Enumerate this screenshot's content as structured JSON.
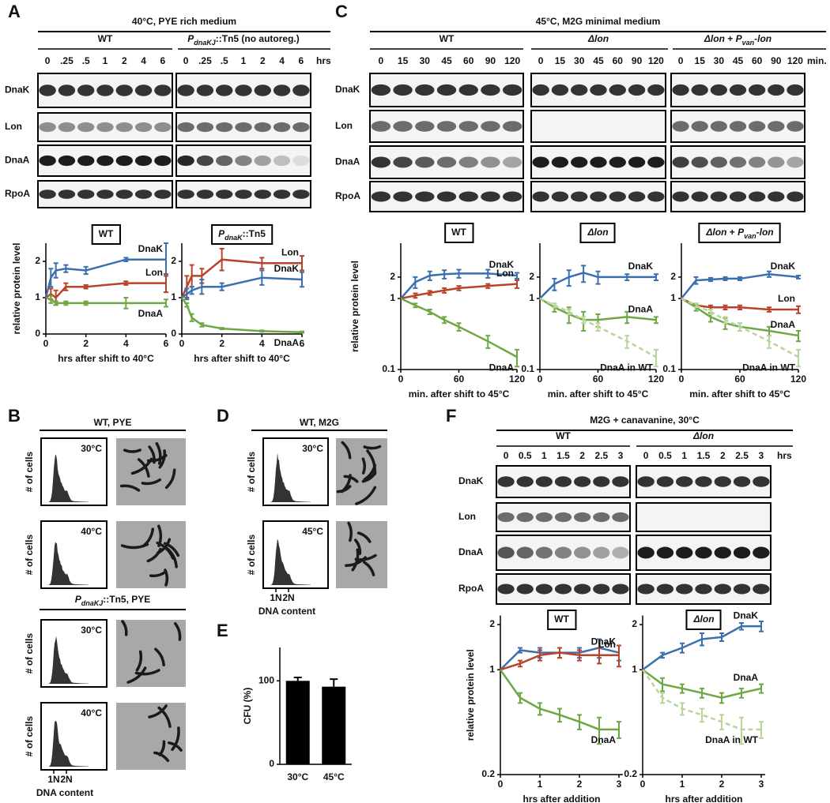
{
  "panel_labels": [
    "A",
    "B",
    "C",
    "D",
    "E",
    "F"
  ],
  "blots": [
    {
      "header": "40°C, PYE rich medium",
      "unit": "hrs",
      "rows": [
        "DnaK",
        "Lon",
        "DnaA",
        "RpoA"
      ],
      "groups": [
        {
          "name": "WT",
          "times": [
            "0",
            ".25",
            ".5",
            "1",
            "2",
            "4",
            "6"
          ]
        },
        {
          "name": [
            {
              "text": "P",
              "italic": true
            },
            {
              "text": "dnaKJ",
              "italic": true,
              "sub": true
            },
            {
              "text": "::Tn5 (no autoreg.)"
            }
          ],
          "times": [
            "0",
            ".25",
            ".5",
            "1",
            "2",
            "4",
            "6"
          ]
        }
      ]
    },
    {
      "header": "45°C, M2G minimal medium",
      "unit": "min.",
      "rows": [
        "DnaK",
        "Lon",
        "DnaA",
        "RpoA"
      ],
      "groups": [
        {
          "name": "WT",
          "times": [
            "0",
            "15",
            "30",
            "45",
            "60",
            "90",
            "120"
          ]
        },
        {
          "name": [
            {
              "text": "Δlon",
              "italic": true
            }
          ],
          "times": [
            "0",
            "15",
            "30",
            "45",
            "60",
            "90",
            "120"
          ]
        },
        {
          "name": [
            {
              "text": "Δlon",
              "italic": true
            },
            {
              "text": " + "
            },
            {
              "text": "P",
              "italic": true
            },
            {
              "text": "van",
              "italic": true,
              "sub": true
            },
            {
              "text": "-lon",
              "italic": true
            }
          ],
          "times": [
            "0",
            "15",
            "30",
            "45",
            "60",
            "90",
            "120"
          ]
        }
      ]
    },
    {
      "header": "M2G + canavanine, 30°C",
      "unit": "hrs",
      "rows": [
        "DnaK",
        "Lon",
        "DnaA",
        "RpoA"
      ],
      "groups": [
        {
          "name": "WT",
          "times": [
            "0",
            "0.5",
            "1",
            "1.5",
            "2",
            "2.5",
            "3"
          ]
        },
        {
          "name": [
            {
              "text": "Δlon",
              "italic": true
            }
          ],
          "times": [
            "0",
            "0.5",
            "1",
            "1.5",
            "2",
            "2.5",
            "3"
          ]
        }
      ]
    }
  ],
  "flow": [
    {
      "title": "WT, PYE",
      "conditions": [
        "30°C",
        "40°C"
      ]
    },
    {
      "title": [
        {
          "text": "P",
          "italic": true
        },
        {
          "text": "dnaKJ",
          "italic": true,
          "sub": true
        },
        {
          "text": "::Tn5, PYE"
        }
      ],
      "conditions": [
        "30°C",
        "40°C"
      ]
    },
    {
      "title": "WT, M2G",
      "conditions": [
        "30°C",
        "45°C"
      ]
    }
  ],
  "flow_ylabel": "# of cells",
  "flow_xticks": [
    "1N",
    "2N"
  ],
  "flow_xlabel": "DNA content",
  "chart_data": [
    {
      "type": "line",
      "title": "WT",
      "ylabel": "relative protein level",
      "xlabel": "hrs after shift to 40°C",
      "x": [
        0,
        0.25,
        0.5,
        1,
        2,
        4,
        6
      ],
      "xlim": [
        0,
        6
      ],
      "xticks": [
        0,
        2,
        4,
        6
      ],
      "ylim": [
        0,
        2.5
      ],
      "yticks": [
        0,
        1,
        2
      ],
      "log_y": false,
      "series": [
        {
          "name": "DnaK",
          "color": "#3b6fae",
          "values": [
            1,
            1.55,
            1.75,
            1.8,
            1.75,
            2.05,
            2.05
          ],
          "errors": [
            0,
            0.25,
            0.2,
            0.1,
            0.1,
            0.05,
            0.45
          ]
        },
        {
          "name": "Lon",
          "color": "#b8422a",
          "values": [
            1,
            1.1,
            1.0,
            1.3,
            1.3,
            1.4,
            1.4
          ],
          "errors": [
            0,
            0.15,
            0.2,
            0.1,
            0.05,
            0.05,
            0.25
          ]
        },
        {
          "name": "DnaA",
          "color": "#6ea844",
          "values": [
            1,
            0.95,
            0.85,
            0.85,
            0.85,
            0.85,
            0.85
          ],
          "errors": [
            0,
            0.1,
            0.05,
            0.05,
            0.05,
            0.15,
            0.1
          ]
        }
      ]
    },
    {
      "type": "line",
      "title": [
        {
          "text": "P",
          "italic": true
        },
        {
          "text": "dnaK",
          "italic": true,
          "sub": true
        },
        {
          "text": "::Tn5"
        }
      ],
      "xlabel": "hrs after shift to 40°C",
      "x": [
        0,
        0.25,
        0.5,
        1,
        2,
        4,
        6
      ],
      "xlim": [
        0,
        6
      ],
      "xticks": [
        0,
        2,
        4,
        6
      ],
      "ylim": [
        0,
        2.5
      ],
      "yticks": [
        0,
        1,
        2
      ],
      "log_y": false,
      "series": [
        {
          "name": "Lon",
          "color": "#b8422a",
          "values": [
            1,
            1.3,
            1.6,
            1.6,
            2.05,
            1.95,
            1.95
          ],
          "errors": [
            0,
            0.3,
            0.3,
            0.2,
            0.3,
            0.15,
            0.2
          ]
        },
        {
          "name": "DnaK",
          "color": "#3b6fae",
          "values": [
            1,
            1.1,
            1.2,
            1.3,
            1.3,
            1.55,
            1.5
          ],
          "errors": [
            0,
            0.15,
            0.1,
            0.2,
            0.1,
            0.2,
            0.2
          ]
        },
        {
          "name": "DnaA",
          "color": "#6ea844",
          "values": [
            1,
            0.8,
            0.45,
            0.25,
            0.15,
            0.08,
            0.05
          ],
          "errors": [
            0,
            0.05,
            0.1,
            0.05,
            0.02,
            0.02,
            0.02
          ]
        }
      ]
    },
    {
      "type": "line",
      "title": "WT",
      "ylabel": "relative protein level",
      "xlabel": "min. after shift to 45°C",
      "x": [
        0,
        15,
        30,
        45,
        60,
        90,
        120
      ],
      "xlim": [
        0,
        120
      ],
      "xticks": [
        0,
        60,
        120
      ],
      "ylim": [
        0.1,
        6
      ],
      "yticks": [
        0.1,
        1,
        2
      ],
      "log_y": true,
      "series": [
        {
          "name": "DnaK",
          "color": "#3b6fae",
          "values": [
            1,
            1.7,
            2.1,
            2.2,
            2.25,
            2.25,
            2.1
          ],
          "errors": [
            0,
            0.3,
            0.3,
            0.3,
            0.3,
            0.3,
            0.2
          ]
        },
        {
          "name": "Lon",
          "color": "#b8422a",
          "values": [
            1,
            1.1,
            1.2,
            1.3,
            1.4,
            1.5,
            1.6
          ],
          "errors": [
            0,
            0.08,
            0.08,
            0.1,
            0.1,
            0.1,
            0.2
          ]
        },
        {
          "name": "DnaA",
          "color": "#6ea844",
          "values": [
            1,
            0.8,
            0.65,
            0.5,
            0.4,
            0.25,
            0.15
          ],
          "errors": [
            0,
            0.05,
            0.05,
            0.05,
            0.05,
            0.05,
            0.04
          ]
        }
      ]
    },
    {
      "type": "line",
      "title": [
        {
          "text": "Δlon",
          "italic": true
        }
      ],
      "xlabel": "min. after shift to 45°C",
      "x": [
        0,
        15,
        30,
        45,
        60,
        90,
        120
      ],
      "xlim": [
        0,
        120
      ],
      "xticks": [
        0,
        60,
        120
      ],
      "ylim": [
        0.1,
        6
      ],
      "yticks": [
        0.1,
        1,
        2
      ],
      "log_y": true,
      "series": [
        {
          "name": "DnaK",
          "color": "#3b6fae",
          "values": [
            1,
            1.6,
            2.0,
            2.3,
            2.0,
            2.0,
            2.0
          ],
          "errors": [
            0,
            0.3,
            0.5,
            0.6,
            0.4,
            0.2,
            0.2
          ]
        },
        {
          "name": "DnaA",
          "color": "#6ea844",
          "values": [
            1,
            0.75,
            0.6,
            0.5,
            0.5,
            0.55,
            0.5
          ],
          "errors": [
            0,
            0.1,
            0.15,
            0.15,
            0.1,
            0.1,
            0.05
          ]
        },
        {
          "name": "DnaA in WT",
          "color": "#b9d59c",
          "dashed": true,
          "values": [
            1,
            0.8,
            0.65,
            0.5,
            0.4,
            0.25,
            0.15
          ],
          "errors": [
            0,
            0.05,
            0.05,
            0.05,
            0.05,
            0.05,
            0.04
          ]
        }
      ]
    },
    {
      "type": "line",
      "title": [
        {
          "text": "Δlon",
          "italic": true
        },
        {
          "text": " + "
        },
        {
          "text": "P",
          "italic": true
        },
        {
          "text": "van",
          "italic": true,
          "sub": true
        },
        {
          "text": "-lon",
          "italic": true
        }
      ],
      "xlabel": "min. after shift to 45°C",
      "x": [
        0,
        15,
        30,
        45,
        60,
        90,
        120
      ],
      "xlim": [
        0,
        120
      ],
      "xticks": [
        0,
        60,
        120
      ],
      "ylim": [
        0.1,
        6
      ],
      "yticks": [
        0.1,
        1,
        2
      ],
      "log_y": true,
      "series": [
        {
          "name": "DnaK",
          "color": "#3b6fae",
          "values": [
            1,
            1.8,
            1.85,
            1.9,
            1.9,
            2.2,
            2.0
          ],
          "errors": [
            0,
            0.2,
            0.1,
            0.1,
            0.1,
            0.2,
            0.1
          ]
        },
        {
          "name": "Lon",
          "color": "#b8422a",
          "values": [
            1,
            0.8,
            0.75,
            0.75,
            0.75,
            0.7,
            0.7
          ],
          "errors": [
            0,
            0.05,
            0.05,
            0.05,
            0.05,
            0.05,
            0.08
          ]
        },
        {
          "name": "DnaA",
          "color": "#6ea844",
          "values": [
            1,
            0.75,
            0.55,
            0.45,
            0.4,
            0.35,
            0.3
          ],
          "errors": [
            0,
            0.08,
            0.08,
            0.08,
            0.05,
            0.05,
            0.05
          ]
        },
        {
          "name": "DnaA in WT",
          "color": "#b9d59c",
          "dashed": true,
          "values": [
            1,
            0.8,
            0.65,
            0.5,
            0.4,
            0.25,
            0.15
          ],
          "errors": [
            0,
            0.05,
            0.05,
            0.05,
            0.05,
            0.05,
            0.04
          ]
        }
      ]
    },
    {
      "type": "line",
      "title": "WT",
      "ylabel": "relative protein level",
      "xlabel": "hrs after addition",
      "x": [
        0,
        0.5,
        1,
        1.5,
        2,
        2.5,
        3
      ],
      "xlim": [
        0,
        3.1
      ],
      "xticks": [
        0,
        1,
        2,
        3
      ],
      "ylim": [
        0.2,
        2.3
      ],
      "yticks": [
        0.2,
        1,
        2
      ],
      "log_y": true,
      "series": [
        {
          "name": "DnaK",
          "color": "#3b6fae",
          "values": [
            1,
            1.35,
            1.3,
            1.3,
            1.3,
            1.4,
            1.3
          ],
          "errors": [
            0,
            0.05,
            0.1,
            0.1,
            0.1,
            0.2,
            0.15
          ]
        },
        {
          "name": "Lon",
          "color": "#b8422a",
          "values": [
            1,
            1.1,
            1.25,
            1.3,
            1.25,
            1.25,
            1.25
          ],
          "errors": [
            0,
            0.05,
            0.1,
            0.1,
            0.1,
            0.15,
            0.2
          ]
        },
        {
          "name": "DnaA",
          "color": "#6ea844",
          "values": [
            1,
            0.65,
            0.55,
            0.5,
            0.45,
            0.4,
            0.4
          ],
          "errors": [
            0,
            0.05,
            0.05,
            0.05,
            0.05,
            0.08,
            0.05
          ]
        }
      ]
    },
    {
      "type": "line",
      "title": [
        {
          "text": "Δlon",
          "italic": true
        }
      ],
      "xlabel": "hrs after addition",
      "x": [
        0,
        0.5,
        1,
        1.5,
        2,
        2.5,
        3
      ],
      "xlim": [
        0,
        3.1
      ],
      "xticks": [
        0,
        1,
        2,
        3
      ],
      "ylim": [
        0.2,
        2.3
      ],
      "yticks": [
        0.2,
        1,
        2
      ],
      "log_y": true,
      "series": [
        {
          "name": "DnaK",
          "color": "#3b6fae",
          "values": [
            1,
            1.25,
            1.4,
            1.6,
            1.65,
            1.95,
            1.95
          ],
          "errors": [
            0,
            0.05,
            0.1,
            0.15,
            0.1,
            0.1,
            0.15
          ]
        },
        {
          "name": "DnaA",
          "color": "#6ea844",
          "values": [
            1,
            0.8,
            0.75,
            0.7,
            0.65,
            0.7,
            0.75
          ],
          "errors": [
            0,
            0.08,
            0.05,
            0.05,
            0.05,
            0.05,
            0.05
          ]
        },
        {
          "name": "DnaA in WT",
          "color": "#b9d59c",
          "dashed": true,
          "values": [
            1,
            0.65,
            0.55,
            0.5,
            0.45,
            0.4,
            0.4
          ],
          "errors": [
            0,
            0.05,
            0.05,
            0.05,
            0.05,
            0.08,
            0.05
          ]
        }
      ]
    },
    {
      "type": "bar",
      "ylabel": "CFU (%)",
      "categories": [
        "30°C",
        "45°C"
      ],
      "values": [
        100,
        93
      ],
      "errors": [
        4,
        9
      ],
      "color": "#000000",
      "ylim": [
        0,
        140
      ],
      "yticks": [
        0,
        100
      ]
    }
  ]
}
